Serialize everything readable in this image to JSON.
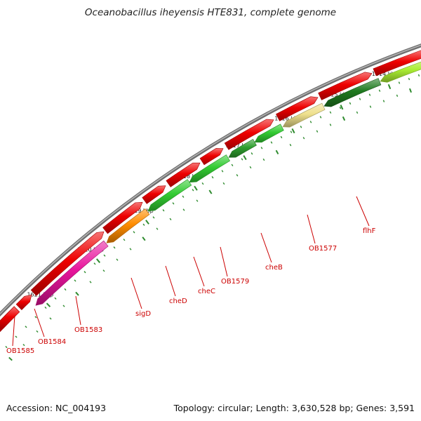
{
  "title": "Oceanobacillus iheyensis HTE831, complete genome",
  "footer": {
    "accession": "Accession: NC_004193",
    "stats": "Topology: circular; Length: 3,630,528 bp; Genes: 3,591"
  },
  "colors": {
    "backbone": "#8a8a8a",
    "forward_gene": "#ee0000",
    "scale": "#2e8b2e",
    "label": "#cc0000"
  },
  "scale_labels": [
    "1614 kbp",
    "1615 kbp",
    "1616 kbp",
    "1617 kbp",
    "1618 kbp",
    "1619 kbp",
    "1620 kbp",
    "1621 kbp"
  ],
  "reverse_genes": [
    {
      "label": "OB1585",
      "color": "#ee0000"
    },
    {
      "label": "OB1584",
      "color": "#ee0000"
    },
    {
      "label": "OB1583",
      "color": "#e8149c"
    },
    {
      "label": "sigD",
      "color": "#ff8c00"
    },
    {
      "label": "cheD",
      "color": "#33cc33"
    },
    {
      "label": "cheC",
      "color": "#33cc33"
    },
    {
      "label": "OB1579",
      "color": "#2e9e2e"
    },
    {
      "label": "cheB",
      "color": "#33cc33"
    },
    {
      "label": "OB1577",
      "color": "#efe08c"
    },
    {
      "label": "flhF",
      "color": "#1f7a1f"
    },
    {
      "label": "",
      "color": "#aaee33"
    }
  ]
}
